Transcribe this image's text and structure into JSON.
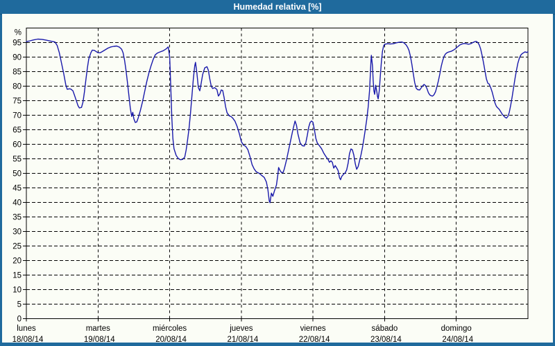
{
  "title": "Humedad relativa [%]",
  "colors": {
    "frame": "#1f6a9d",
    "title_text": "#ffffff",
    "panel_bg": "#fbfdf6",
    "grid": "#000000",
    "axis": "#000000",
    "line": "#1818aa"
  },
  "chart_data": {
    "type": "line",
    "title": "Humedad relativa [%]",
    "ylabel": "%",
    "ylim": [
      0,
      100
    ],
    "yticks": [
      0,
      5,
      10,
      15,
      20,
      25,
      30,
      35,
      40,
      45,
      50,
      55,
      60,
      65,
      70,
      75,
      80,
      85,
      90,
      95
    ],
    "grid": true,
    "legend": "none",
    "days": [
      {
        "name": "lunes",
        "date": "18/08/14"
      },
      {
        "name": "martes",
        "date": "19/08/14"
      },
      {
        "name": "miércoles",
        "date": "20/08/14"
      },
      {
        "name": "jueves",
        "date": "21/08/14"
      },
      {
        "name": "viernes",
        "date": "22/08/14"
      },
      {
        "name": "sábado",
        "date": "23/08/14"
      },
      {
        "name": "domingo",
        "date": "24/08/14"
      }
    ],
    "x_unit": "days_from_start",
    "series": [
      {
        "name": "Humedad relativa [%]",
        "color": "#1818aa",
        "points": [
          [
            0.0,
            95.3
          ],
          [
            0.05,
            95.6
          ],
          [
            0.1,
            95.9
          ],
          [
            0.16,
            96.2
          ],
          [
            0.22,
            96.1
          ],
          [
            0.28,
            95.8
          ],
          [
            0.34,
            95.5
          ],
          [
            0.4,
            95.2
          ],
          [
            0.43,
            94.0
          ],
          [
            0.46,
            91.5
          ],
          [
            0.49,
            88.0
          ],
          [
            0.52,
            84.5
          ],
          [
            0.55,
            80.5
          ],
          [
            0.57,
            78.9
          ],
          [
            0.6,
            79.1
          ],
          [
            0.62,
            79.0
          ],
          [
            0.65,
            78.4
          ],
          [
            0.67,
            77.0
          ],
          [
            0.7,
            74.8
          ],
          [
            0.72,
            73.3
          ],
          [
            0.74,
            72.5
          ],
          [
            0.77,
            72.7
          ],
          [
            0.79,
            74.5
          ],
          [
            0.81,
            78.0
          ],
          [
            0.83,
            82.0
          ],
          [
            0.85,
            86.0
          ],
          [
            0.87,
            89.3
          ],
          [
            0.9,
            91.5
          ],
          [
            0.92,
            92.4
          ],
          [
            0.95,
            92.3
          ],
          [
            0.98,
            91.8
          ],
          [
            1.0,
            91.5
          ],
          [
            1.03,
            91.5
          ],
          [
            1.06,
            91.9
          ],
          [
            1.1,
            92.5
          ],
          [
            1.14,
            93.1
          ],
          [
            1.18,
            93.5
          ],
          [
            1.22,
            93.7
          ],
          [
            1.26,
            93.8
          ],
          [
            1.3,
            93.4
          ],
          [
            1.33,
            92.7
          ],
          [
            1.35,
            91.5
          ],
          [
            1.37,
            89.0
          ],
          [
            1.39,
            85.5
          ],
          [
            1.41,
            81.5
          ],
          [
            1.43,
            77.0
          ],
          [
            1.45,
            72.5
          ],
          [
            1.47,
            69.6
          ],
          [
            1.485,
            71.0
          ],
          [
            1.5,
            68.8
          ],
          [
            1.52,
            67.5
          ],
          [
            1.54,
            67.7
          ],
          [
            1.56,
            69.0
          ],
          [
            1.59,
            71.5
          ],
          [
            1.62,
            74.5
          ],
          [
            1.65,
            78.0
          ],
          [
            1.68,
            81.5
          ],
          [
            1.71,
            84.5
          ],
          [
            1.74,
            87.0
          ],
          [
            1.77,
            89.2
          ],
          [
            1.8,
            90.8
          ],
          [
            1.83,
            91.4
          ],
          [
            1.87,
            91.8
          ],
          [
            1.91,
            92.2
          ],
          [
            1.95,
            92.8
          ],
          [
            1.98,
            93.5
          ],
          [
            2.0,
            90.0
          ],
          [
            2.015,
            80.0
          ],
          [
            2.03,
            69.0
          ],
          [
            2.045,
            62.0
          ],
          [
            2.06,
            58.5
          ],
          [
            2.09,
            56.2
          ],
          [
            2.12,
            55.1
          ],
          [
            2.15,
            54.7
          ],
          [
            2.18,
            54.8
          ],
          [
            2.21,
            55.6
          ],
          [
            2.23,
            58.0
          ],
          [
            2.25,
            61.5
          ],
          [
            2.27,
            65.5
          ],
          [
            2.29,
            70.5
          ],
          [
            2.31,
            76.5
          ],
          [
            2.33,
            82.5
          ],
          [
            2.35,
            87.0
          ],
          [
            2.36,
            88.2
          ],
          [
            2.38,
            84.5
          ],
          [
            2.4,
            79.5
          ],
          [
            2.42,
            78.4
          ],
          [
            2.44,
            81.0
          ],
          [
            2.46,
            84.0
          ],
          [
            2.49,
            86.3
          ],
          [
            2.52,
            86.7
          ],
          [
            2.54,
            85.5
          ],
          [
            2.56,
            82.5
          ],
          [
            2.58,
            80.0
          ],
          [
            2.6,
            79.2
          ],
          [
            2.63,
            79.5
          ],
          [
            2.66,
            78.8
          ],
          [
            2.68,
            76.6
          ],
          [
            2.7,
            77.3
          ],
          [
            2.72,
            78.7
          ],
          [
            2.74,
            78.5
          ],
          [
            2.76,
            76.0
          ],
          [
            2.78,
            73.0
          ],
          [
            2.8,
            70.9
          ],
          [
            2.83,
            69.8
          ],
          [
            2.86,
            69.5
          ],
          [
            2.88,
            69.0
          ],
          [
            2.91,
            68.0
          ],
          [
            2.94,
            66.2
          ],
          [
            2.97,
            63.8
          ],
          [
            3.0,
            60.9
          ],
          [
            3.03,
            59.7
          ],
          [
            3.06,
            59.3
          ],
          [
            3.09,
            58.2
          ],
          [
            3.12,
            55.8
          ],
          [
            3.15,
            53.0
          ],
          [
            3.18,
            51.5
          ],
          [
            3.21,
            50.5
          ],
          [
            3.25,
            50.0
          ],
          [
            3.29,
            49.2
          ],
          [
            3.32,
            48.6
          ],
          [
            3.35,
            47.0
          ],
          [
            3.37,
            44.5
          ],
          [
            3.39,
            40.5
          ],
          [
            3.4,
            39.9
          ],
          [
            3.42,
            43.2
          ],
          [
            3.44,
            42.1
          ],
          [
            3.46,
            43.8
          ],
          [
            3.49,
            46.0
          ],
          [
            3.51,
            49.5
          ],
          [
            3.52,
            52.0
          ],
          [
            3.54,
            51.0
          ],
          [
            3.56,
            50.3
          ],
          [
            3.58,
            50.2
          ],
          [
            3.6,
            51.5
          ],
          [
            3.63,
            54.5
          ],
          [
            3.66,
            58.0
          ],
          [
            3.69,
            61.5
          ],
          [
            3.72,
            65.0
          ],
          [
            3.75,
            68.0
          ],
          [
            3.77,
            66.5
          ],
          [
            3.79,
            63.5
          ],
          [
            3.82,
            60.5
          ],
          [
            3.85,
            59.5
          ],
          [
            3.88,
            59.4
          ],
          [
            3.9,
            60.5
          ],
          [
            3.92,
            63.0
          ],
          [
            3.94,
            65.8
          ],
          [
            3.96,
            67.5
          ],
          [
            3.98,
            68.0
          ],
          [
            4.0,
            67.6
          ],
          [
            4.02,
            65.0
          ],
          [
            4.04,
            62.0
          ],
          [
            4.06,
            60.5
          ],
          [
            4.09,
            59.5
          ],
          [
            4.12,
            58.5
          ],
          [
            4.15,
            57.0
          ],
          [
            4.18,
            55.8
          ],
          [
            4.21,
            54.8
          ],
          [
            4.23,
            53.8
          ],
          [
            4.25,
            54.3
          ],
          [
            4.27,
            53.8
          ],
          [
            4.29,
            51.8
          ],
          [
            4.31,
            52.7
          ],
          [
            4.33,
            51.9
          ],
          [
            4.35,
            51.0
          ],
          [
            4.37,
            48.5
          ],
          [
            4.385,
            47.8
          ],
          [
            4.4,
            48.9
          ],
          [
            4.43,
            49.8
          ],
          [
            4.45,
            50.2
          ],
          [
            4.47,
            51.2
          ],
          [
            4.49,
            53.5
          ],
          [
            4.51,
            56.8
          ],
          [
            4.53,
            58.4
          ],
          [
            4.55,
            58.1
          ],
          [
            4.57,
            56.3
          ],
          [
            4.59,
            53.3
          ],
          [
            4.61,
            51.4
          ],
          [
            4.63,
            52.3
          ],
          [
            4.65,
            54.3
          ],
          [
            4.67,
            56.3
          ],
          [
            4.69,
            58.8
          ],
          [
            4.71,
            61.8
          ],
          [
            4.73,
            65.0
          ],
          [
            4.75,
            68.5
          ],
          [
            4.77,
            72.8
          ],
          [
            4.79,
            78.5
          ],
          [
            4.8,
            84.0
          ],
          [
            4.81,
            89.0
          ],
          [
            4.815,
            90.6
          ],
          [
            4.83,
            87.0
          ],
          [
            4.84,
            82.0
          ],
          [
            4.85,
            78.5
          ],
          [
            4.86,
            77.2
          ],
          [
            4.875,
            80.3
          ],
          [
            4.89,
            78.2
          ],
          [
            4.9,
            76.5
          ],
          [
            4.91,
            75.6
          ],
          [
            4.925,
            78.5
          ],
          [
            4.94,
            83.5
          ],
          [
            4.955,
            88.5
          ],
          [
            4.97,
            92.0
          ],
          [
            4.985,
            93.8
          ],
          [
            5.0,
            94.4
          ],
          [
            5.04,
            94.6
          ],
          [
            5.08,
            94.5
          ],
          [
            5.12,
            94.6
          ],
          [
            5.16,
            94.9
          ],
          [
            5.2,
            95.1
          ],
          [
            5.24,
            95.2
          ],
          [
            5.27,
            94.9
          ],
          [
            5.3,
            94.2
          ],
          [
            5.32,
            93.4
          ],
          [
            5.34,
            92.3
          ],
          [
            5.36,
            90.3
          ],
          [
            5.38,
            87.5
          ],
          [
            5.4,
            84.3
          ],
          [
            5.42,
            81.2
          ],
          [
            5.44,
            79.3
          ],
          [
            5.46,
            78.8
          ],
          [
            5.49,
            78.7
          ],
          [
            5.51,
            79.4
          ],
          [
            5.53,
            80.1
          ],
          [
            5.55,
            80.6
          ],
          [
            5.57,
            80.2
          ],
          [
            5.59,
            79.2
          ],
          [
            5.61,
            77.8
          ],
          [
            5.63,
            77.0
          ],
          [
            5.65,
            76.7
          ],
          [
            5.67,
            76.6
          ],
          [
            5.69,
            77.1
          ],
          [
            5.71,
            78.1
          ],
          [
            5.73,
            79.8
          ],
          [
            5.75,
            81.8
          ],
          [
            5.77,
            84.2
          ],
          [
            5.79,
            86.8
          ],
          [
            5.81,
            88.8
          ],
          [
            5.83,
            90.3
          ],
          [
            5.85,
            91.1
          ],
          [
            5.87,
            91.5
          ],
          [
            5.9,
            91.8
          ],
          [
            5.93,
            92.0
          ],
          [
            5.96,
            92.4
          ],
          [
            5.99,
            92.9
          ],
          [
            6.02,
            93.6
          ],
          [
            6.05,
            94.2
          ],
          [
            6.08,
            94.5
          ],
          [
            6.11,
            94.7
          ],
          [
            6.14,
            94.6
          ],
          [
            6.17,
            94.4
          ],
          [
            6.2,
            94.6
          ],
          [
            6.23,
            95.0
          ],
          [
            6.26,
            95.3
          ],
          [
            6.28,
            95.4
          ],
          [
            6.3,
            95.0
          ],
          [
            6.32,
            94.2
          ],
          [
            6.34,
            92.8
          ],
          [
            6.36,
            90.6
          ],
          [
            6.38,
            88.0
          ],
          [
            6.4,
            85.3
          ],
          [
            6.42,
            82.5
          ],
          [
            6.44,
            81.0
          ],
          [
            6.46,
            80.7
          ],
          [
            6.48,
            79.5
          ],
          [
            6.5,
            78.0
          ],
          [
            6.52,
            76.2
          ],
          [
            6.54,
            74.2
          ],
          [
            6.56,
            73.0
          ],
          [
            6.58,
            72.5
          ],
          [
            6.6,
            72.0
          ],
          [
            6.62,
            71.2
          ],
          [
            6.64,
            70.4
          ],
          [
            6.66,
            69.8
          ],
          [
            6.68,
            69.3
          ],
          [
            6.7,
            69.0
          ],
          [
            6.72,
            69.6
          ],
          [
            6.74,
            71.0
          ],
          [
            6.76,
            73.5
          ],
          [
            6.78,
            76.4
          ],
          [
            6.8,
            79.5
          ],
          [
            6.82,
            82.7
          ],
          [
            6.84,
            85.5
          ],
          [
            6.86,
            87.9
          ],
          [
            6.88,
            89.6
          ],
          [
            6.9,
            90.7
          ],
          [
            6.92,
            91.2
          ],
          [
            6.94,
            91.5
          ],
          [
            6.96,
            91.8
          ],
          [
            6.98,
            91.6
          ],
          [
            7.0,
            91.8
          ]
        ]
      }
    ]
  }
}
